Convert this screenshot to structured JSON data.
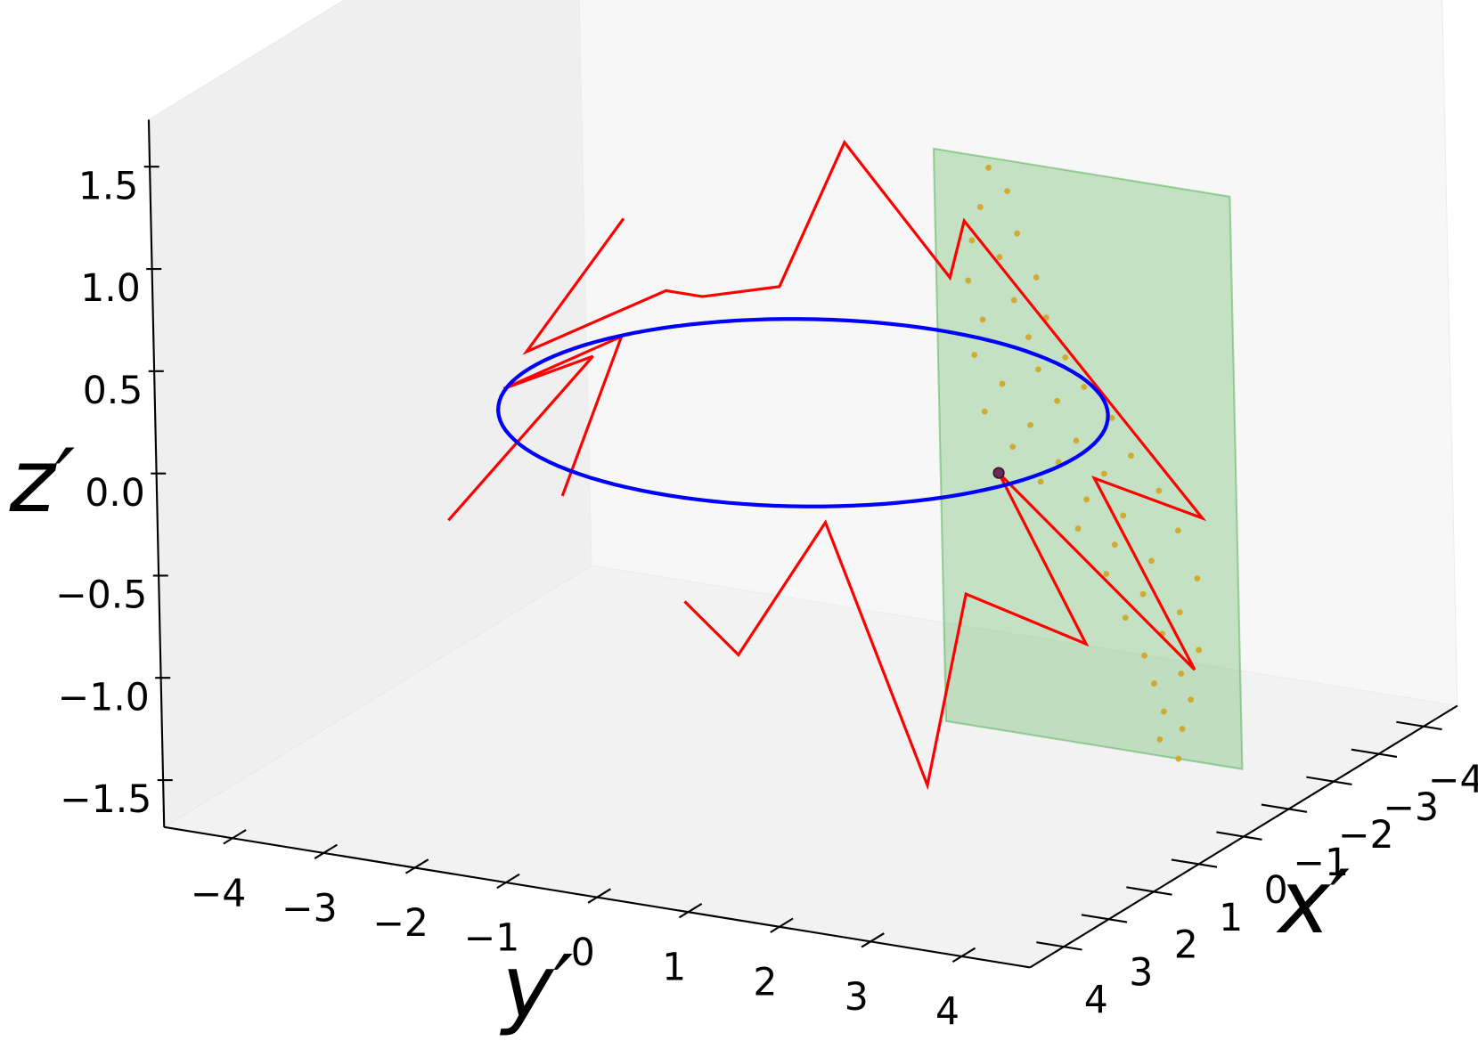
{
  "chart_data": {
    "type": "scatter3d",
    "xlabel": "x′",
    "ylabel": "y′",
    "zlabel": "z′",
    "xlim": [
      -4.75,
      4.75
    ],
    "ylim": [
      -4.75,
      4.75
    ],
    "zlim": [
      -1.73,
      1.73
    ],
    "xticks": [
      {
        "value": -4,
        "label": "−4"
      },
      {
        "value": -3,
        "label": "−3"
      },
      {
        "value": -2,
        "label": "−2"
      },
      {
        "value": -1,
        "label": "−1"
      },
      0,
      1,
      2,
      3,
      4
    ],
    "yticks": [
      {
        "value": -4,
        "label": "−4"
      },
      {
        "value": -3,
        "label": "−3"
      },
      {
        "value": -2,
        "label": "−2"
      },
      {
        "value": -1,
        "label": "−1"
      },
      0,
      1,
      2,
      3,
      4
    ],
    "zticks": [
      {
        "value": -1.5,
        "label": "−1.5"
      },
      {
        "value": -1,
        "label": "−1.0"
      },
      {
        "value": -0.5,
        "label": "−0.5"
      },
      {
        "value": 0,
        "label": "0.0"
      },
      0.5,
      {
        "value": 1,
        "label": "1.0"
      },
      1.5
    ],
    "series": [
      {
        "type": "plane",
        "color": "#2ca02c",
        "x": 0,
        "ylim": [
          1.5,
          4.75
        ],
        "zlim": [
          -1.4,
          1.4
        ]
      },
      {
        "type": "scatter",
        "color": "#d4a017",
        "x": 0,
        "y": [
          2.1,
          2.3,
          2.0,
          2.4,
          1.9,
          2.2,
          2.6,
          1.85,
          2.35,
          2.7,
          2.0,
          2.5,
          2.9,
          1.9,
          2.6,
          3.1,
          2.2,
          2.8,
          3.4,
          2.0,
          2.5,
          3.0,
          3.6,
          2.3,
          2.8,
          3.3,
          3.9,
          2.6,
          3.1,
          3.5,
          4.1,
          3.0,
          3.4,
          3.8,
          4.3,
          3.3,
          3.7,
          4.1,
          3.5,
          3.9,
          4.3,
          3.7,
          4.1,
          3.8,
          4.2,
          3.9,
          4.1,
          3.85,
          4.05
        ],
        "z": [
          1.35,
          1.25,
          1.15,
          1.05,
          0.98,
          0.92,
          0.85,
          0.78,
          0.72,
          0.66,
          0.6,
          0.55,
          0.48,
          0.42,
          0.4,
          0.35,
          0.3,
          0.26,
          0.22,
          0.15,
          0.12,
          0.08,
          0.05,
          0.0,
          -0.04,
          -0.06,
          -0.1,
          -0.15,
          -0.2,
          -0.25,
          -0.28,
          -0.35,
          -0.4,
          -0.45,
          -0.5,
          -0.55,
          -0.62,
          -0.68,
          -0.75,
          -0.8,
          -0.85,
          -0.92,
          -0.98,
          -1.05,
          -1.1,
          -1.18,
          -1.25,
          -1.32,
          -1.4
        ]
      },
      {
        "type": "line",
        "color": "#ff0000",
        "x": 0,
        "y": [
          -1.93,
          -3.03,
          -1.48,
          -1.08,
          -0.23,
          0.52,
          1.65,
          1.82,
          4.37,
          3.19,
          4.25,
          2.14,
          3.06,
          1.75,
          1.28,
          0.22,
          -0.77,
          -1.35,
          null,
          -2.67,
          -1.98,
          -3.29,
          -2.3,
          -3.93
        ],
        "z": [
          0.81,
          0.08,
          0.49,
          0.49,
          0.6,
          1.36,
          0.78,
          1.07,
          -0.2,
          -0.09,
          -0.95,
          -0.14,
          -0.91,
          -0.76,
          -1.73,
          -0.52,
          -1.24,
          -1.02,
          null,
          -0.6,
          0.23,
          -0.12,
          0.11,
          -0.81
        ]
      },
      {
        "type": "circle",
        "color": "#0000ff",
        "radius": 3,
        "z": 0
      },
      {
        "type": "point",
        "color": "#6b2a5a",
        "x": 0,
        "y": 2.14,
        "z": -0.14
      }
    ]
  }
}
